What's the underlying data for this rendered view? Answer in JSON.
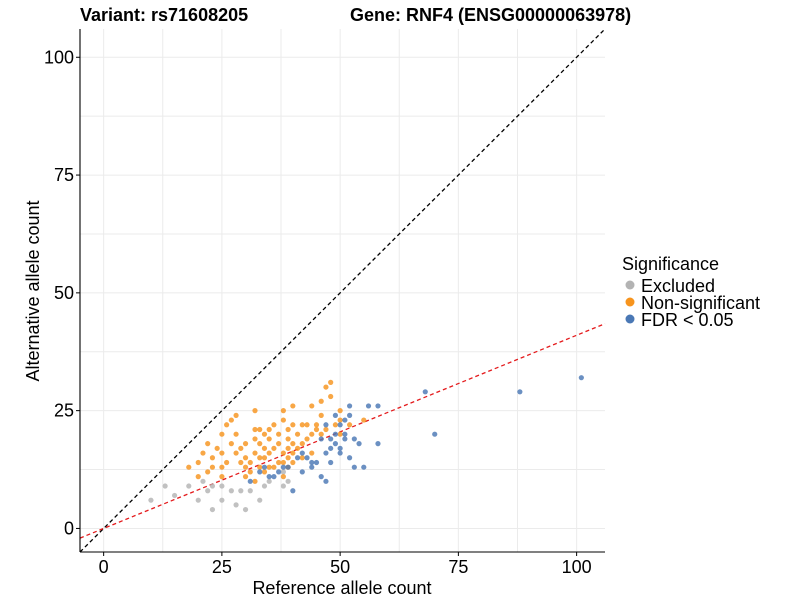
{
  "chart_data": {
    "type": "scatter",
    "title_left": "Variant: rs71608205",
    "title_right": "Gene: RNF4 (ENSG00000063978)",
    "xlabel": "Reference allele count",
    "ylabel": "Alternative allele count",
    "xlim": [
      -5,
      106
    ],
    "ylim": [
      -5,
      106
    ],
    "x_ticks": [
      0,
      25,
      50,
      75,
      100
    ],
    "y_ticks": [
      0,
      25,
      50,
      75,
      100
    ],
    "grid": true,
    "legend": {
      "title": "Significance",
      "position": "right",
      "entries": [
        {
          "label": "Excluded",
          "color": "#b3b3b3"
        },
        {
          "label": "Non-significant",
          "color": "#f7941d"
        },
        {
          "label": "FDR < 0.05",
          "color": "#4a78b5"
        }
      ]
    },
    "reference_lines": [
      {
        "name": "identity",
        "color": "#000000",
        "style": "dashed",
        "slope": 1,
        "intercept": 0
      },
      {
        "name": "fit",
        "color": "#e41a1c",
        "style": "dashed",
        "slope": 0.41,
        "intercept": 0
      }
    ],
    "series": [
      {
        "name": "Excluded",
        "color": "#b3b3b3",
        "points": [
          [
            10,
            6
          ],
          [
            13,
            9
          ],
          [
            15,
            7
          ],
          [
            18,
            9
          ],
          [
            20,
            6
          ],
          [
            21,
            10
          ],
          [
            22,
            8
          ],
          [
            23,
            4
          ],
          [
            23,
            9
          ],
          [
            25,
            6
          ],
          [
            25,
            9
          ],
          [
            27,
            8
          ],
          [
            28,
            5
          ],
          [
            29,
            8
          ],
          [
            30,
            4
          ],
          [
            31,
            8
          ],
          [
            33,
            6
          ],
          [
            34,
            9
          ],
          [
            35,
            10
          ],
          [
            38,
            9
          ],
          [
            38,
            12
          ],
          [
            39,
            10
          ]
        ]
      },
      {
        "name": "Non-significant",
        "color": "#f7941d",
        "points": [
          [
            18,
            13
          ],
          [
            20,
            11
          ],
          [
            20,
            14
          ],
          [
            21,
            16
          ],
          [
            22,
            12
          ],
          [
            22,
            18
          ],
          [
            23,
            13
          ],
          [
            23,
            15
          ],
          [
            24,
            17
          ],
          [
            25,
            11
          ],
          [
            25,
            13
          ],
          [
            25,
            16
          ],
          [
            25,
            20
          ],
          [
            26,
            14
          ],
          [
            26,
            22
          ],
          [
            27,
            18
          ],
          [
            27,
            23
          ],
          [
            28,
            16
          ],
          [
            28,
            20
          ],
          [
            28,
            24
          ],
          [
            29,
            14
          ],
          [
            29,
            17
          ],
          [
            30,
            11
          ],
          [
            30,
            13
          ],
          [
            30,
            15
          ],
          [
            30,
            18
          ],
          [
            31,
            12
          ],
          [
            31,
            14
          ],
          [
            32,
            10
          ],
          [
            32,
            16
          ],
          [
            32,
            19
          ],
          [
            32,
            21
          ],
          [
            32,
            25
          ],
          [
            33,
            13
          ],
          [
            33,
            15
          ],
          [
            33,
            18
          ],
          [
            33,
            21
          ],
          [
            34,
            12
          ],
          [
            34,
            15
          ],
          [
            34,
            17
          ],
          [
            34,
            20
          ],
          [
            35,
            13
          ],
          [
            35,
            16
          ],
          [
            35,
            19
          ],
          [
            35,
            21
          ],
          [
            36,
            13
          ],
          [
            36,
            17
          ],
          [
            36,
            22
          ],
          [
            37,
            14
          ],
          [
            37,
            18
          ],
          [
            37,
            20
          ],
          [
            38,
            11
          ],
          [
            38,
            14
          ],
          [
            38,
            16
          ],
          [
            38,
            23
          ],
          [
            38,
            25
          ],
          [
            39,
            13
          ],
          [
            39,
            15
          ],
          [
            39,
            17
          ],
          [
            39,
            19
          ],
          [
            39,
            21
          ],
          [
            40,
            14
          ],
          [
            40,
            16
          ],
          [
            40,
            18
          ],
          [
            40,
            22
          ],
          [
            40,
            26
          ],
          [
            41,
            17
          ],
          [
            41,
            20
          ],
          [
            42,
            15
          ],
          [
            42,
            18
          ],
          [
            42,
            22
          ],
          [
            43,
            19
          ],
          [
            43,
            22
          ],
          [
            44,
            16
          ],
          [
            44,
            20
          ],
          [
            44,
            26
          ],
          [
            45,
            21
          ],
          [
            45,
            22
          ],
          [
            46,
            20
          ],
          [
            46,
            24
          ],
          [
            46,
            27
          ],
          [
            47,
            21
          ],
          [
            47,
            30
          ],
          [
            48,
            28
          ],
          [
            48,
            31
          ],
          [
            49,
            22
          ],
          [
            50,
            20
          ],
          [
            50,
            23
          ],
          [
            50,
            25
          ],
          [
            52,
            22
          ],
          [
            55,
            23
          ]
        ]
      },
      {
        "name": "FDR < 0.05",
        "color": "#4a78b5",
        "points": [
          [
            31,
            10
          ],
          [
            33,
            12
          ],
          [
            34,
            13
          ],
          [
            35,
            11
          ],
          [
            36,
            11
          ],
          [
            37,
            12
          ],
          [
            38,
            13
          ],
          [
            39,
            13
          ],
          [
            40,
            8
          ],
          [
            41,
            15
          ],
          [
            42,
            12
          ],
          [
            42,
            16
          ],
          [
            43,
            15
          ],
          [
            44,
            13
          ],
          [
            44,
            14
          ],
          [
            45,
            14
          ],
          [
            46,
            11
          ],
          [
            46,
            19
          ],
          [
            47,
            10
          ],
          [
            47,
            16
          ],
          [
            47,
            22
          ],
          [
            48,
            14
          ],
          [
            48,
            17
          ],
          [
            48,
            19
          ],
          [
            49,
            18
          ],
          [
            49,
            20
          ],
          [
            49,
            24
          ],
          [
            50,
            16
          ],
          [
            50,
            17
          ],
          [
            50,
            22
          ],
          [
            51,
            19
          ],
          [
            51,
            20
          ],
          [
            51,
            23
          ],
          [
            52,
            15
          ],
          [
            52,
            24
          ],
          [
            52,
            26
          ],
          [
            53,
            13
          ],
          [
            53,
            19
          ],
          [
            54,
            18
          ],
          [
            55,
            13
          ],
          [
            56,
            26
          ],
          [
            58,
            18
          ],
          [
            58,
            26
          ],
          [
            68,
            29
          ],
          [
            70,
            20
          ],
          [
            88,
            29
          ],
          [
            101,
            32
          ]
        ]
      }
    ]
  }
}
